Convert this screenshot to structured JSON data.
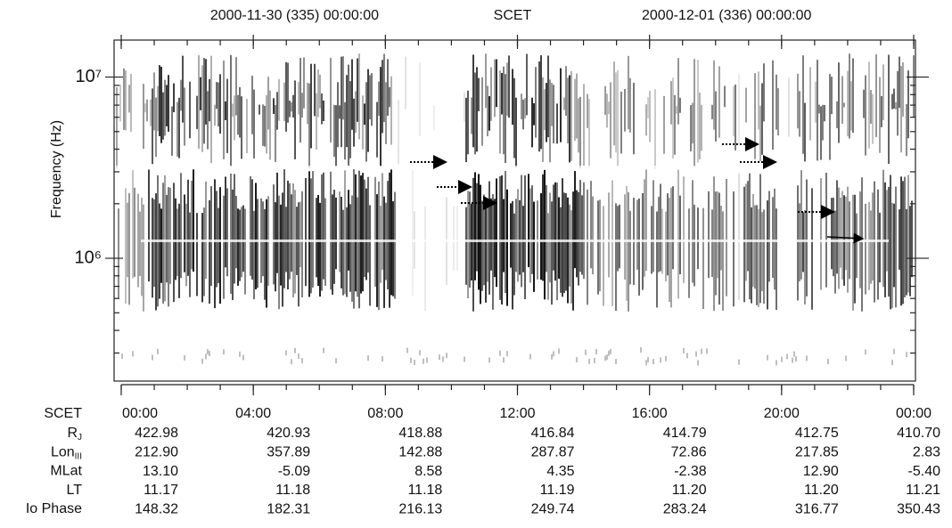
{
  "header": {
    "left": "2000-11-30 (335) 00:00:00",
    "middle": "SCET",
    "right": "2000-12-01 (336) 00:00:00"
  },
  "chart_data": {
    "type": "spectrogram",
    "y_label": "Frequency (Hz)",
    "y_log": true,
    "ylim": [
      210000,
      16000000
    ],
    "yticks": [
      {
        "value": 1000000,
        "label": "10⁶"
      },
      {
        "value": 10000000,
        "label": "10⁷"
      }
    ],
    "xlim": [
      0,
      24
    ],
    "x_label": "SCET",
    "xticks": [
      {
        "value": 0,
        "label": "00:00"
      },
      {
        "value": 4,
        "label": "04:00"
      },
      {
        "value": 8,
        "label": "08:00"
      },
      {
        "value": 12,
        "label": "12:00"
      },
      {
        "value": 16,
        "label": "16:00"
      },
      {
        "value": 20,
        "label": "20:00"
      },
      {
        "value": 24,
        "label": "00:00"
      }
    ]
  },
  "ephemeris": {
    "rows": [
      {
        "label": "R",
        "subscript": "J",
        "values": [
          "422.98",
          "420.93",
          "418.88",
          "416.84",
          "414.79",
          "412.75",
          "410.70"
        ]
      },
      {
        "label": "Lon",
        "subscript": "III",
        "values": [
          "212.90",
          "357.89",
          "142.88",
          "287.87",
          "72.86",
          "217.85",
          "2.83"
        ]
      },
      {
        "label": "MLat",
        "values": [
          "13.10",
          "-5.09",
          "8.58",
          "4.35",
          "-2.38",
          "12.90",
          "-5.40"
        ]
      },
      {
        "label": "LT",
        "values": [
          "11.17",
          "11.18",
          "11.18",
          "11.19",
          "11.20",
          "11.20",
          "11.21"
        ]
      },
      {
        "label": "Io Phase",
        "values": [
          "148.32",
          "182.31",
          "216.13",
          "249.74",
          "283.24",
          "316.77",
          "350.43"
        ]
      }
    ]
  }
}
